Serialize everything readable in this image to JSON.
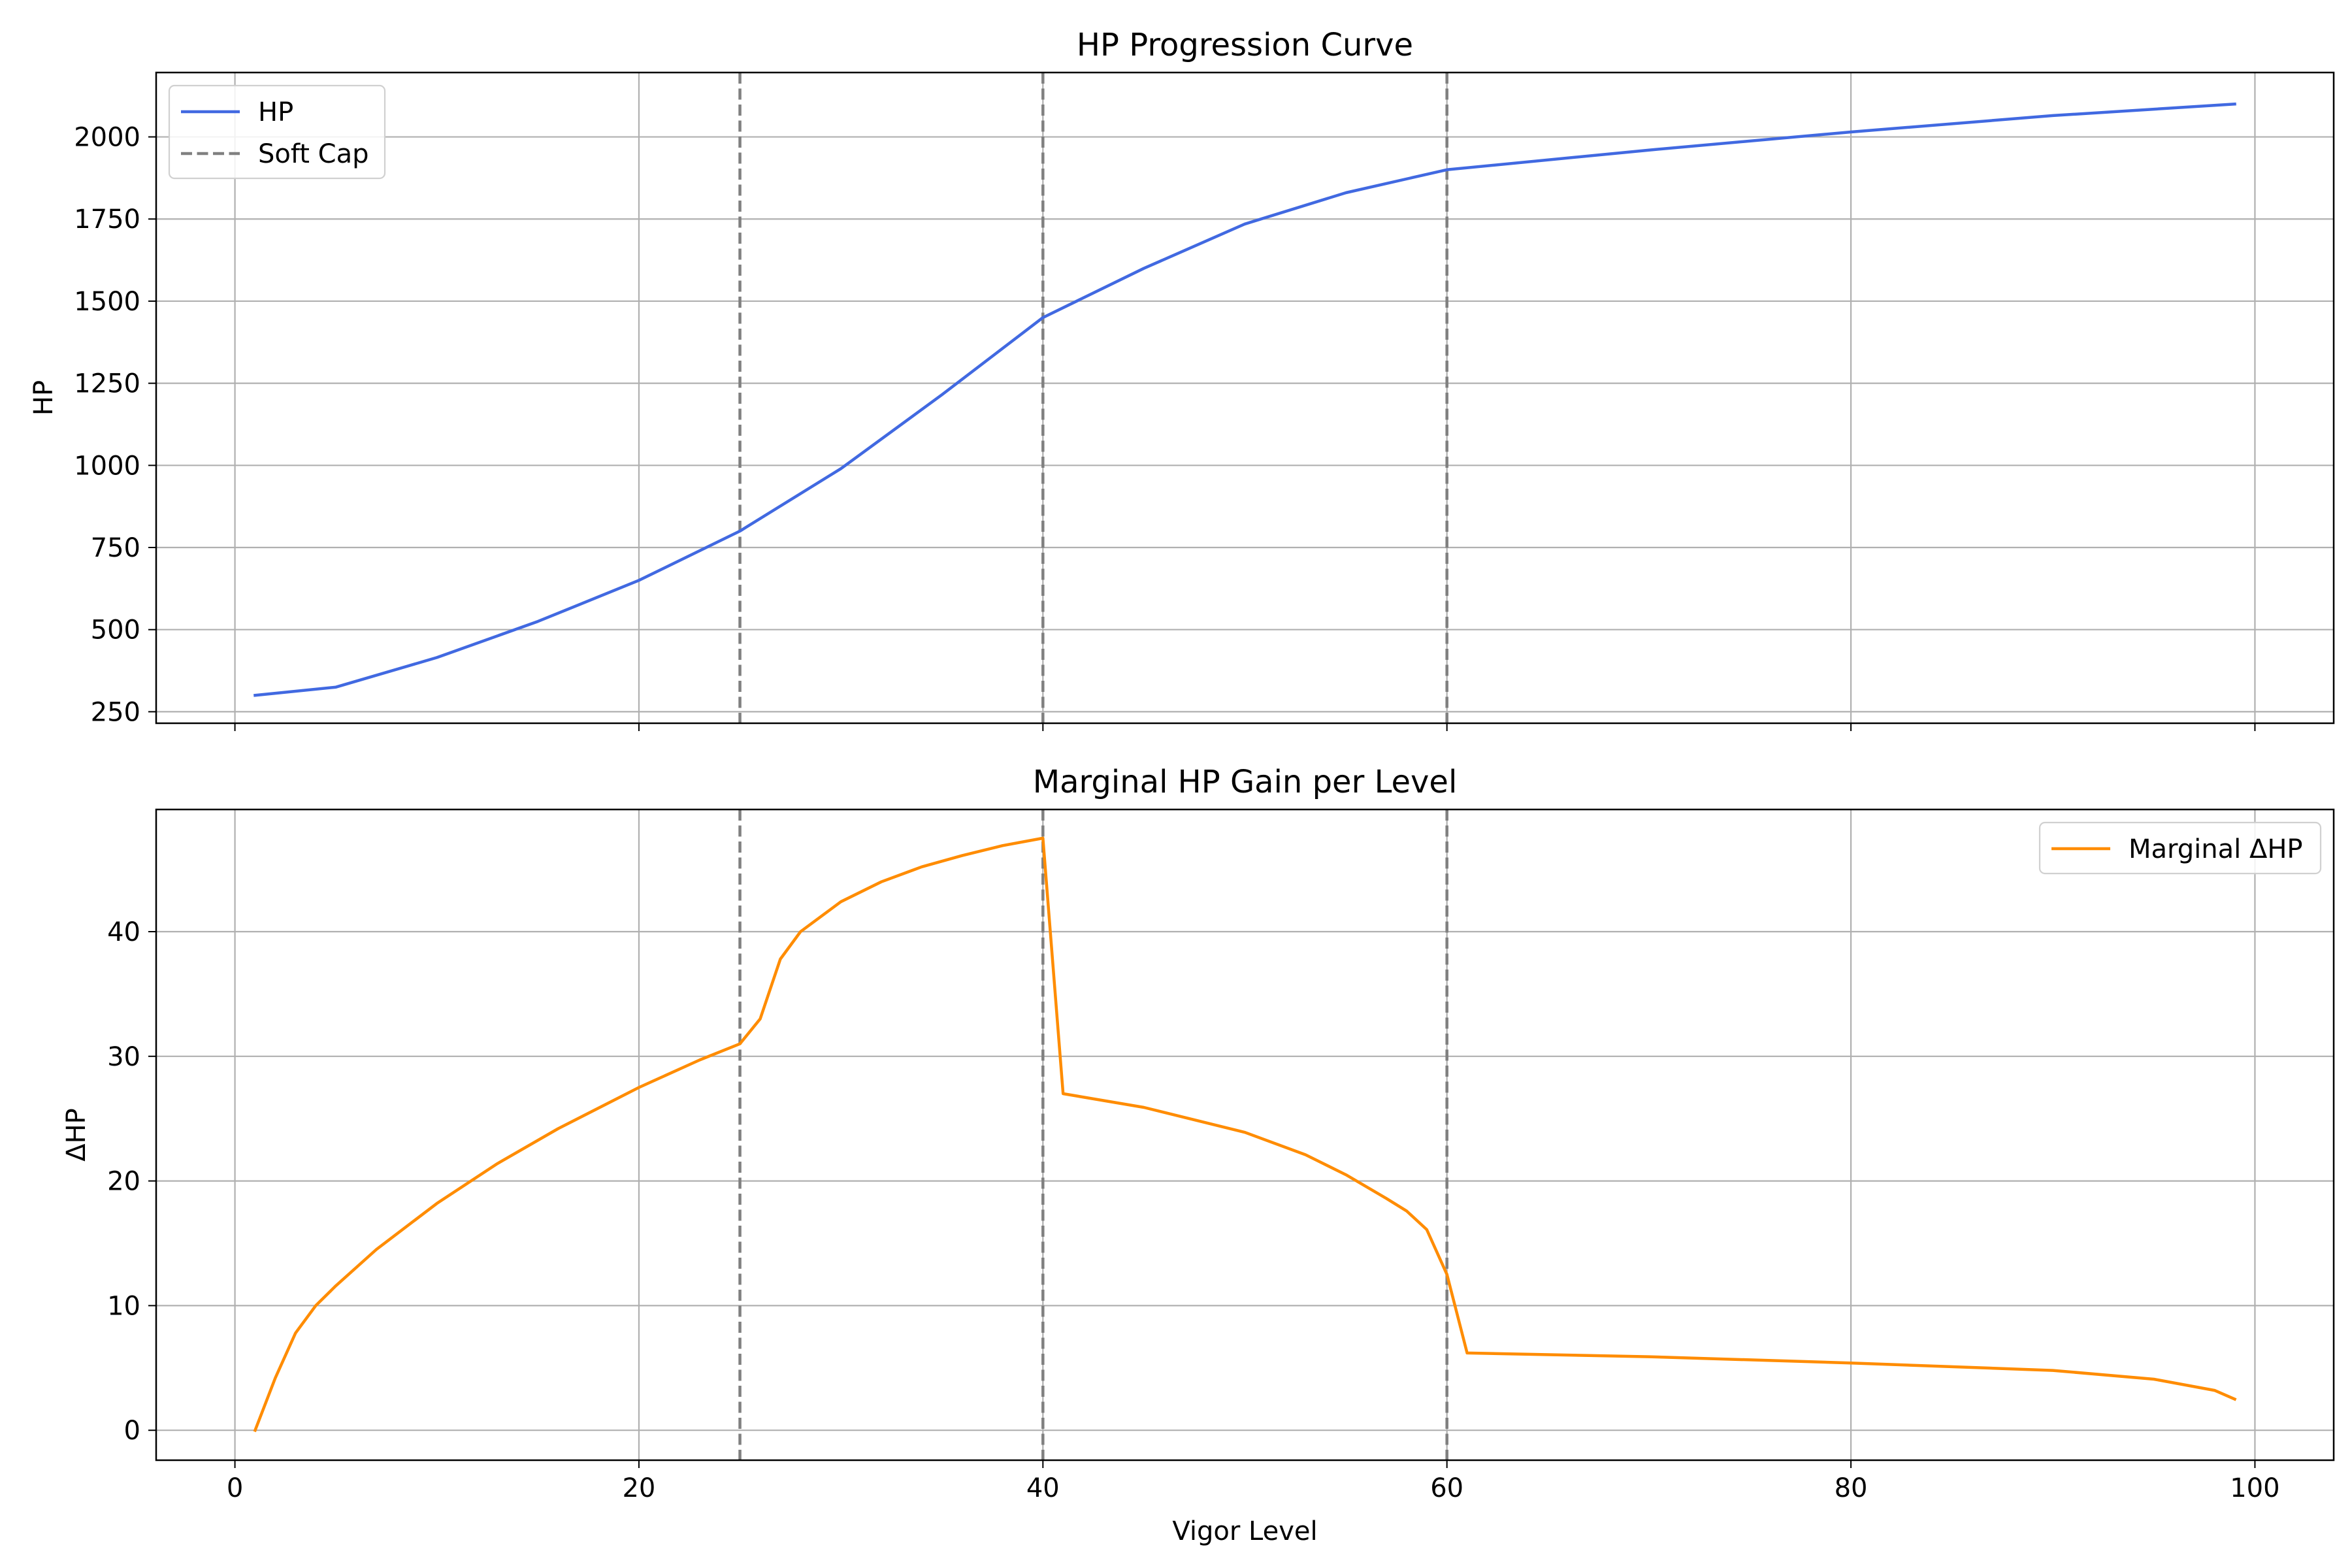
{
  "chart_data": [
    {
      "type": "line",
      "title": "HP Progression Curve",
      "xlabel": "",
      "ylabel": "HP",
      "xlim": [
        -3.9,
        103.9
      ],
      "ylim": [
        215,
        2196
      ],
      "xticks": [
        0,
        20,
        40,
        60,
        80,
        100
      ],
      "xtick_labels_visible": false,
      "yticks": [
        250,
        500,
        750,
        1000,
        1250,
        1500,
        1750,
        2000
      ],
      "grid": true,
      "legend": {
        "location": "upper left",
        "entries": [
          {
            "label": "HP",
            "style": "solid",
            "color": "#4169e1"
          },
          {
            "label": "Soft Cap",
            "style": "dashed",
            "color": "#808080"
          }
        ]
      },
      "series": [
        {
          "name": "HP",
          "color": "#4169e1",
          "style": "solid",
          "x": [
            1,
            5,
            10,
            15,
            20,
            25,
            30,
            35,
            40,
            45,
            50,
            55,
            60,
            70,
            80,
            90,
            99
          ],
          "y": [
            300,
            325,
            415,
            525,
            650,
            800,
            990,
            1215,
            1450,
            1600,
            1735,
            1830,
            1900,
            1960,
            2015,
            2065,
            2100
          ]
        }
      ],
      "vlines": {
        "name": "Soft Cap",
        "x": [
          25,
          40,
          60
        ],
        "color": "#808080",
        "style": "dashed"
      }
    },
    {
      "type": "line",
      "title": "Marginal HP Gain per Level",
      "xlabel": "Vigor Level",
      "ylabel": "ΔHP",
      "xlim": [
        -3.9,
        103.9
      ],
      "ylim": [
        -2.4,
        49.8
      ],
      "xticks": [
        0,
        20,
        40,
        60,
        80,
        100
      ],
      "yticks": [
        0,
        10,
        20,
        30,
        40
      ],
      "grid": true,
      "legend": {
        "location": "upper right",
        "entries": [
          {
            "label": "Marginal ΔHP",
            "style": "solid",
            "color": "#ff8c00"
          }
        ]
      },
      "series": [
        {
          "name": "Marginal ΔHP",
          "color": "#ff8c00",
          "style": "solid",
          "x": [
            1,
            2,
            3,
            4,
            5,
            7,
            10,
            13,
            16,
            20,
            23,
            25,
            26,
            27,
            28,
            30,
            32,
            34,
            36,
            38,
            40,
            41,
            45,
            50,
            53,
            55,
            57,
            58,
            59,
            60,
            61,
            70,
            80,
            90,
            95,
            98,
            99
          ],
          "y": [
            0,
            4.2,
            7.8,
            10.0,
            11.6,
            14.5,
            18.2,
            21.4,
            24.2,
            27.5,
            29.7,
            31.0,
            33.0,
            37.8,
            40.0,
            42.4,
            44.0,
            45.2,
            46.1,
            46.9,
            47.5,
            27.0,
            25.9,
            23.9,
            22.1,
            20.5,
            18.6,
            17.6,
            16.1,
            12.5,
            6.2,
            5.9,
            5.4,
            4.8,
            4.1,
            3.2,
            2.5
          ]
        }
      ],
      "vlines": {
        "x": [
          25,
          40,
          60
        ],
        "color": "#808080",
        "style": "dashed"
      }
    }
  ]
}
